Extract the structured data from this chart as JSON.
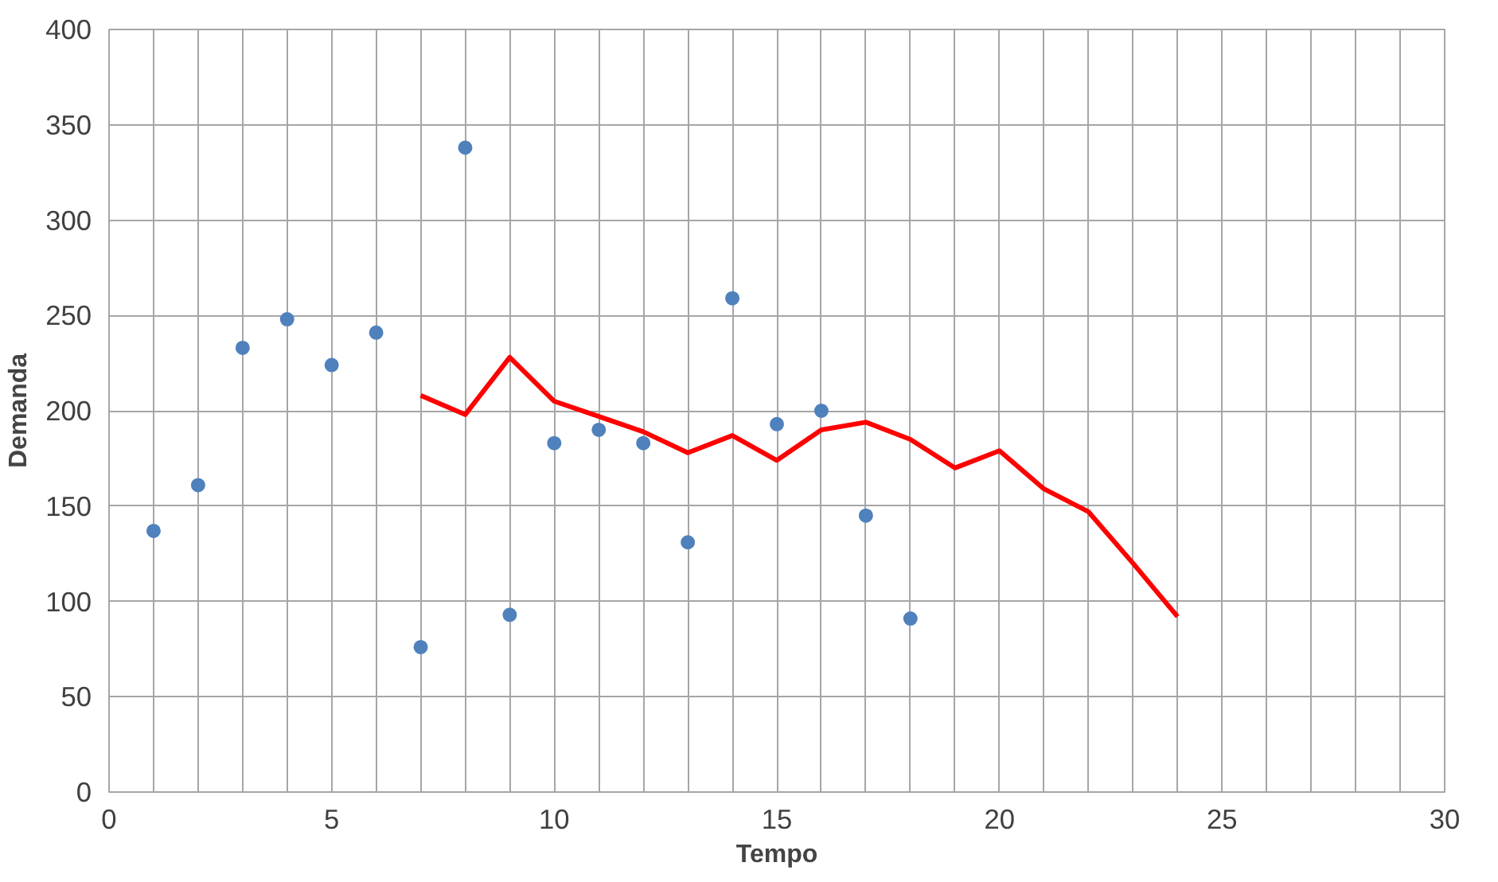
{
  "chart_data": {
    "type": "scatter",
    "xlabel": "Tempo",
    "ylabel": "Demanda",
    "series": [
      {
        "color": "#4f81bd",
        "marker": "circle",
        "x": [
          1,
          2,
          3,
          4,
          5,
          6,
          7,
          8,
          9,
          10,
          11,
          12,
          13,
          14,
          15,
          16,
          17,
          18
        ],
        "values": [
          137,
          161,
          233,
          248,
          224,
          241,
          76,
          338,
          93,
          183,
          190,
          183,
          131,
          259,
          193,
          200,
          145,
          91
        ]
      },
      {
        "type": "line",
        "color": "#ff0000",
        "marker": "none",
        "x": [
          7,
          8,
          9,
          10,
          11,
          12,
          13,
          14,
          15,
          16,
          17,
          18,
          19,
          20,
          21,
          22,
          23,
          24
        ],
        "values": [
          208,
          198,
          228,
          205,
          197,
          189,
          178,
          187,
          174,
          190,
          194,
          185,
          170,
          179,
          159,
          147,
          120,
          92
        ]
      }
    ],
    "xlim": [
      0,
      30
    ],
    "ylim": [
      0,
      400
    ],
    "xticks": [
      0,
      {
        "value": 1,
        "label": null
      },
      {
        "value": 2,
        "label": null
      },
      {
        "value": 3,
        "label": null
      },
      {
        "value": 4,
        "label": null
      },
      5,
      {
        "value": 6,
        "label": null
      },
      {
        "value": 7,
        "label": null
      },
      {
        "value": 8,
        "label": null
      },
      {
        "value": 9,
        "label": null
      },
      10,
      {
        "value": 11,
        "label": null
      },
      {
        "value": 12,
        "label": null
      },
      {
        "value": 13,
        "label": null
      },
      {
        "value": 14,
        "label": null
      },
      15,
      {
        "value": 16,
        "label": null
      },
      {
        "value": 17,
        "label": null
      },
      {
        "value": 18,
        "label": null
      },
      {
        "value": 19,
        "label": null
      },
      20,
      {
        "value": 21,
        "label": null
      },
      {
        "value": 22,
        "label": null
      },
      {
        "value": 23,
        "label": null
      },
      {
        "value": 24,
        "label": null
      },
      25,
      {
        "value": 26,
        "label": null
      },
      {
        "value": 27,
        "label": null
      },
      {
        "value": 28,
        "label": null
      },
      {
        "value": 29,
        "label": null
      },
      30
    ],
    "yticks": [
      0,
      50,
      100,
      150,
      200,
      250,
      300,
      350,
      400
    ],
    "grid": true
  }
}
